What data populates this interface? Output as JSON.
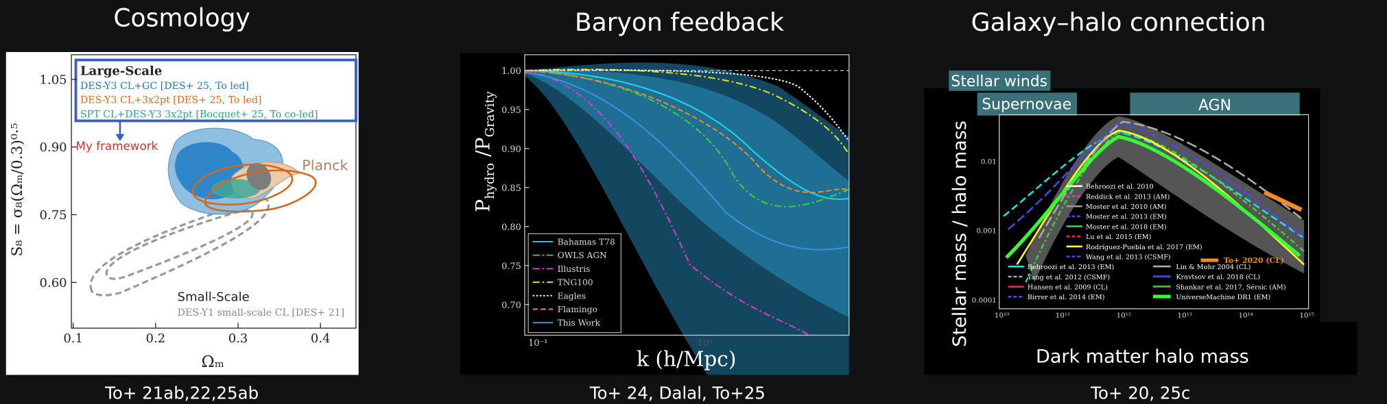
{
  "panels": [
    {
      "title": "Cosmology",
      "caption": "To+ 21ab,22,25ab",
      "y_label": "S₈ = σ₈(Ωₘ/0.3)⁰·⁵",
      "x_label": "Ωₘ",
      "yticks": [
        "1.05",
        "0.90",
        "0.75",
        "0.60"
      ],
      "xticks": [
        "0.1",
        "0.2",
        "0.3",
        "0.4"
      ],
      "legend_title": "Large-Scale",
      "legend": [
        "DES-Y3 CL+GC [DES+ 25, To led]",
        "DES-Y3 CL+3x2pt [DES+ 25, To led]",
        "SPT CL+DES-Y3 3x2pt [Bocquet+ 25, To co-led]"
      ],
      "framework_note": "My framework",
      "planck": "Planck",
      "small_scale_title": "Small-Scale",
      "small_scale_entry": "DES-Y1 small-scale CL [DES+ 21]"
    },
    {
      "title": "Baryon feedback",
      "caption": "To+ 24, Dalal, To+25",
      "y_label": {
        "p1": "P",
        "s1": "hydro",
        "p2": " /P",
        "s2": "Gravity"
      },
      "x_label": "k (h/Mpc)",
      "yticks": [
        "1.00",
        "0.95",
        "0.90",
        "0.85",
        "0.80",
        "0.75",
        "0.70"
      ],
      "xticks": [
        "10⁻¹",
        "10⁰"
      ],
      "legend": [
        "Bahamas T78",
        "OWLS AGN",
        "Illustris",
        "TNG100",
        "Eagles",
        "Flamingo",
        "This Work"
      ]
    },
    {
      "title": "Galaxy–halo connection",
      "caption": "To+ 20, 25c",
      "regimes": [
        "Stellar winds",
        "Supernovae",
        "AGN"
      ],
      "y_label": "Stellar mass / halo mass",
      "x_label": "Dark matter halo mass",
      "yticks": [
        "0.01",
        "0.001",
        "0.0001"
      ],
      "xticks": [
        "10¹⁰",
        "10¹¹",
        "10¹²",
        "10¹³",
        "10¹⁴",
        "10¹⁵"
      ],
      "legend_left": [
        "Behroozi et al. 2010",
        "Reddick et al. 2013 (AM)",
        "Moster et al. 2010 (AM)",
        "Moster et al. 2013 (EM)",
        "Moster et al. 2018 (EM)",
        "Lu et al. 2015 (EM)",
        "Rodríguez-Puebla et al. 2017 (EM)",
        "Wang et al. 2013 (CSMF)",
        "Behroozi et al. 2013 (EM)",
        "Yang et al. 2012 (CSMF)",
        "Hansen et al. 2009 (CL)",
        "Birrer et al. 2014 (EM)"
      ],
      "legend_right": [
        "To+ 2020 (CL)",
        "Lin & Mohr 2004 (CL)",
        "Kravtsov et al. 2018 (CL)",
        "Shankar et al. 2017, Sérsic (AM)",
        "UniverseMachine DR1 (EM)"
      ]
    }
  ]
}
